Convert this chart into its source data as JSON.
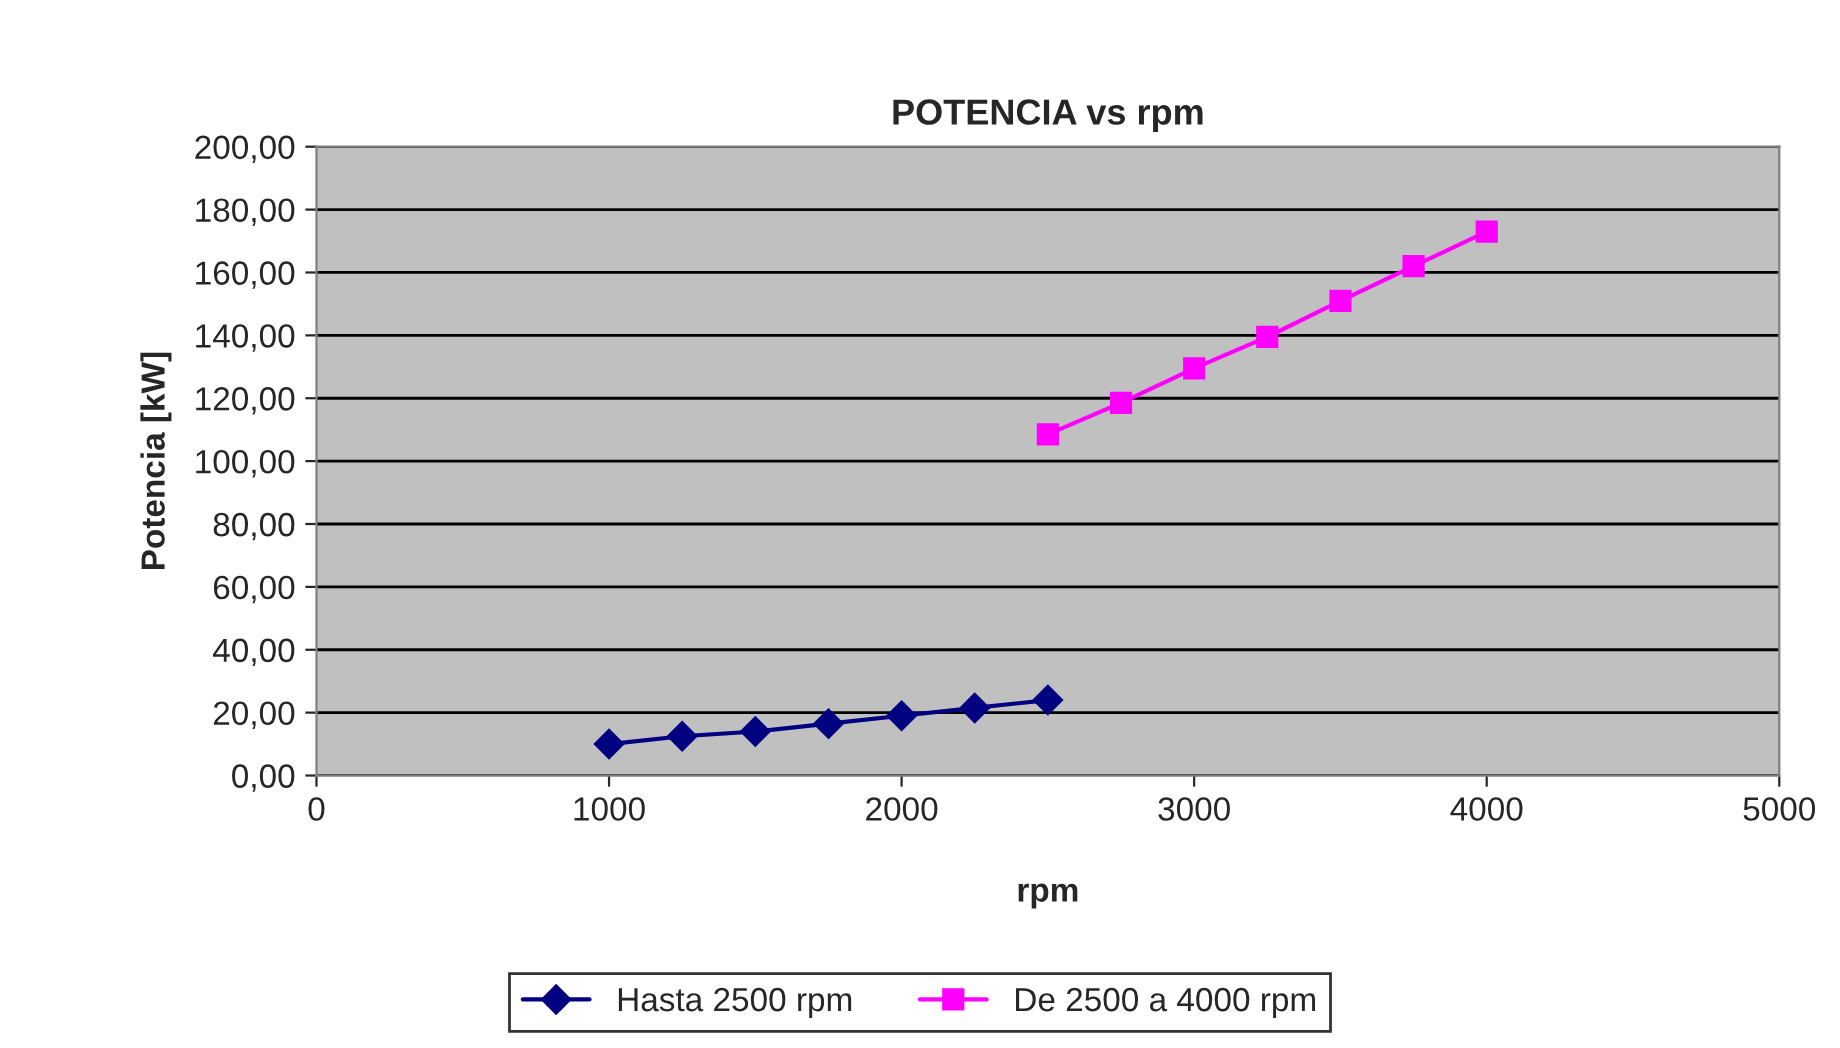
{
  "chart_data": {
    "type": "line",
    "title": "POTENCIA vs rpm",
    "xlabel": "rpm",
    "ylabel": "Potencia [kW]",
    "xlim": [
      0,
      5000
    ],
    "xticks": [
      0,
      1000,
      2000,
      3000,
      4000,
      5000
    ],
    "ylim": [
      0,
      200
    ],
    "yticks": [
      {
        "value": 0,
        "label": "0,00"
      },
      {
        "value": 20,
        "label": "20,00"
      },
      {
        "value": 40,
        "label": "40,00"
      },
      {
        "value": 60,
        "label": "60,00"
      },
      {
        "value": 80,
        "label": "80,00"
      },
      {
        "value": 100,
        "label": "100,00"
      },
      {
        "value": 120,
        "label": "120,00"
      },
      {
        "value": 140,
        "label": "140,00"
      },
      {
        "value": 160,
        "label": "160,00"
      },
      {
        "value": 180,
        "label": "180,00"
      },
      {
        "value": 200,
        "label": "200,00"
      }
    ],
    "grid": "y",
    "legend": "bottom",
    "series": [
      {
        "name": "Hasta 2500 rpm",
        "color": "#000080",
        "marker": "diamond",
        "x": [
          1000,
          1250,
          1500,
          1750,
          2000,
          2250,
          2500
        ],
        "values": [
          10,
          12.5,
          14,
          16.5,
          19,
          21.5,
          24
        ]
      },
      {
        "name": "De 2500 a 4000 rpm",
        "color": "#ff00ff",
        "marker": "square",
        "x": [
          2500,
          2750,
          3000,
          3250,
          3500,
          3750,
          4000
        ],
        "values": [
          108.5,
          118.5,
          129.5,
          139.5,
          151,
          162,
          173
        ]
      }
    ]
  }
}
